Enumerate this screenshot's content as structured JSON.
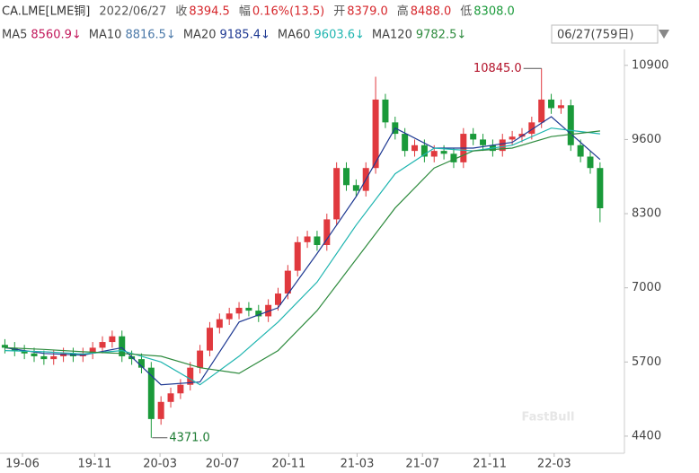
{
  "header": {
    "row1": [
      {
        "label": "CA.LME[LME铜]",
        "color": "#333333"
      },
      {
        "label": "2022/06/27",
        "color": "#555555"
      },
      {
        "label": "收",
        "color": "#555555"
      },
      {
        "label": "8394.5",
        "color": "#d6262b"
      },
      {
        "label": "幅",
        "color": "#555555"
      },
      {
        "label": "0.16%(13.5)",
        "color": "#d6262b"
      },
      {
        "label": "开",
        "color": "#555555"
      },
      {
        "label": "8379.0",
        "color": "#d6262b"
      },
      {
        "label": "高",
        "color": "#555555"
      },
      {
        "label": "8488.0",
        "color": "#d6262b"
      },
      {
        "label": "低",
        "color": "#555555"
      },
      {
        "label": "8308.0",
        "color": "#1a9a3a"
      }
    ],
    "period": "06/27(759日)"
  },
  "chart_data": {
    "type": "candlestick",
    "up_color": "#e0393e",
    "down_color": "#1a9a3a",
    "xlim": [
      -0.5,
      63.5
    ],
    "xticks": [
      {
        "value": 1.8,
        "label": "19-06"
      },
      {
        "value": 9.2,
        "label": "19-11"
      },
      {
        "value": 15.9,
        "label": "20-03"
      },
      {
        "value": 22.3,
        "label": "20-07"
      },
      {
        "value": 29.1,
        "label": "20-11"
      },
      {
        "value": 36.1,
        "label": "21-03"
      },
      {
        "value": 42.8,
        "label": "21-07"
      },
      {
        "value": 49.7,
        "label": "21-11"
      },
      {
        "value": 56.3,
        "label": "22-03"
      }
    ],
    "ylim": [
      4100,
      11180
    ],
    "yticks": [
      4400,
      5700,
      7000,
      8300,
      9600,
      10900
    ],
    "open": [
      6000,
      5950,
      5900,
      5850,
      5800,
      5750,
      5800,
      5850,
      5800,
      5850,
      5950,
      6050,
      6150,
      5800,
      5750,
      5600,
      4700,
      5000,
      5150,
      5300,
      5600,
      5900,
      6300,
      6450,
      6550,
      6650,
      6600,
      6500,
      6700,
      6900,
      7300,
      7800,
      7900,
      7750,
      8200,
      9100,
      8800,
      8700,
      9100,
      10300,
      9900,
      9700,
      9400,
      9500,
      9300,
      9400,
      9350,
      9200,
      9700,
      9600,
      9500,
      9400,
      9600,
      9650,
      9700,
      9900,
      10300,
      10150,
      10200,
      9500,
      9300,
      9100
    ],
    "high": [
      6100,
      6050,
      6000,
      5950,
      5900,
      5900,
      5950,
      5950,
      5950,
      6050,
      6150,
      6250,
      6250,
      5900,
      5850,
      5700,
      5100,
      5250,
      5400,
      5700,
      6000,
      6400,
      6550,
      6650,
      6750,
      6750,
      6700,
      6800,
      7000,
      7400,
      7900,
      8000,
      8000,
      8300,
      9200,
      9200,
      8900,
      9200,
      10700,
      10400,
      10000,
      9800,
      9600,
      9600,
      9500,
      9500,
      9450,
      9800,
      9800,
      9700,
      9600,
      9700,
      9750,
      9800,
      10000,
      10845,
      10400,
      10300,
      10300,
      9600,
      9400,
      9200
    ],
    "low": [
      5850,
      5800,
      5750,
      5700,
      5650,
      5650,
      5700,
      5700,
      5700,
      5750,
      5850,
      5950,
      5700,
      5650,
      5500,
      4371,
      4600,
      4900,
      5050,
      5200,
      5500,
      5800,
      6200,
      6350,
      6450,
      6500,
      6400,
      6400,
      6600,
      6800,
      7200,
      7700,
      7650,
      7650,
      8100,
      8700,
      8600,
      8600,
      9000,
      9800,
      9600,
      9300,
      9300,
      9200,
      9200,
      9250,
      9100,
      9100,
      9500,
      9400,
      9300,
      9300,
      9500,
      9550,
      9600,
      9800,
      10050,
      10050,
      9400,
      9200,
      9000,
      8150
    ],
    "close": [
      5950,
      5900,
      5850,
      5800,
      5750,
      5800,
      5850,
      5800,
      5850,
      5950,
      6050,
      6150,
      5800,
      5750,
      5600,
      4700,
      5000,
      5150,
      5300,
      5600,
      5900,
      6300,
      6450,
      6550,
      6650,
      6600,
      6500,
      6700,
      6900,
      7300,
      7800,
      7900,
      7750,
      8200,
      9100,
      8800,
      8700,
      9100,
      10300,
      9900,
      9700,
      9400,
      9500,
      9300,
      9400,
      9350,
      9200,
      9700,
      9600,
      9500,
      9400,
      9600,
      9650,
      9700,
      9900,
      10300,
      10150,
      10200,
      9500,
      9300,
      9100,
      8395
    ],
    "series": [
      {
        "name": "MA5",
        "value_label": "8560.9↓",
        "color": "#c2185b"
      },
      {
        "name": "MA10",
        "value_label": "8816.5↓",
        "color": "#4a78a8"
      },
      {
        "name": "MA20",
        "value_label": "9185.4↓",
        "color": "#1f3a93",
        "x": [
          0,
          4,
          8,
          12,
          16,
          20,
          24,
          28,
          32,
          36,
          40,
          44,
          48,
          52,
          56,
          61
        ],
        "values": [
          5950,
          5850,
          5820,
          5950,
          5300,
          5350,
          6400,
          6650,
          7600,
          8600,
          9800,
          9450,
          9450,
          9550,
          10000,
          9250
        ]
      },
      {
        "name": "MA60",
        "value_label": "9603.6↓",
        "color": "#1fb5b0",
        "x": [
          0,
          4,
          8,
          12,
          16,
          20,
          24,
          28,
          32,
          36,
          40,
          44,
          48,
          52,
          56,
          61
        ],
        "values": [
          5900,
          5880,
          5840,
          5900,
          5700,
          5300,
          5800,
          6400,
          7100,
          8100,
          9000,
          9450,
          9400,
          9500,
          9800,
          9700
        ]
      },
      {
        "name": "MA120",
        "value_label": "9782.5↓",
        "color": "#2e8b3e",
        "x": [
          0,
          4,
          8,
          12,
          16,
          20,
          24,
          28,
          32,
          36,
          40,
          44,
          48,
          52,
          56,
          61
        ],
        "values": [
          5950,
          5920,
          5880,
          5850,
          5800,
          5600,
          5500,
          5900,
          6600,
          7500,
          8400,
          9100,
          9400,
          9450,
          9650,
          9750
        ]
      }
    ],
    "annotations": [
      {
        "label": "10845.0",
        "value": 10845,
        "x": 55,
        "side": "left"
      },
      {
        "label": "4371.0",
        "value": 4371,
        "x": 15,
        "side": "right"
      }
    ],
    "watermark": "FastBull"
  }
}
